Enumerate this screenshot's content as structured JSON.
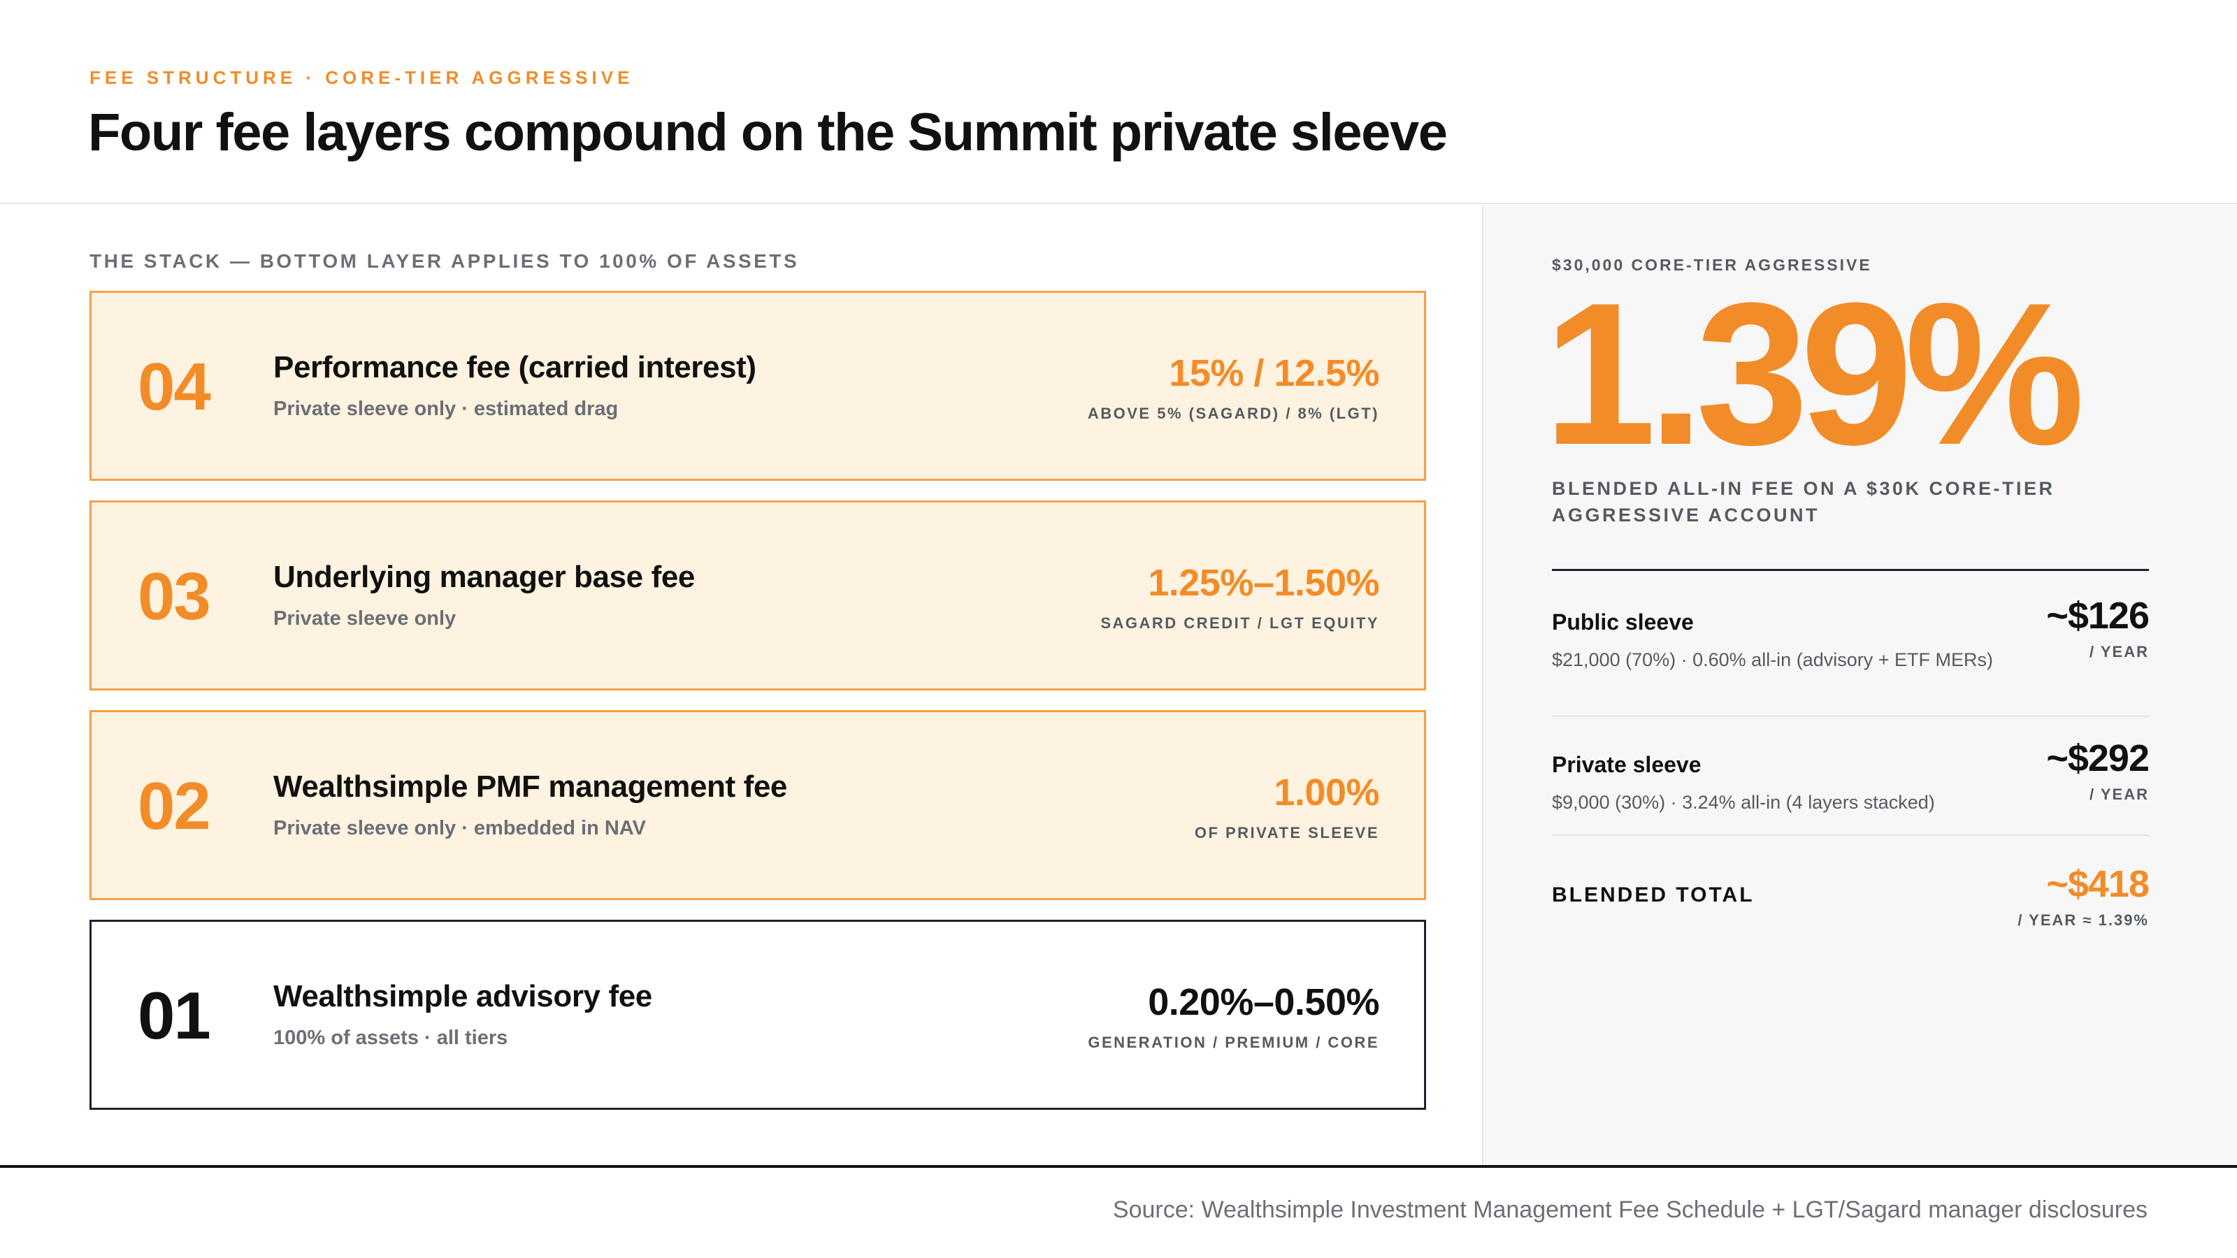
{
  "header": {
    "eyebrow": "FEE STRUCTURE · CORE-TIER AGGRESSIVE",
    "title": "Four fee layers compound on the Summit private sleeve"
  },
  "stack": {
    "label": "THE STACK — BOTTOM LAYER APPLIES TO 100% OF ASSETS",
    "layers": [
      {
        "number": "04",
        "name": "Performance fee (carried interest)",
        "sub": "Private sleeve only · estimated drag",
        "rate": "15% / 12.5%",
        "rate_note": "ABOVE 5% (SAGARD) / 8% (LGT)"
      },
      {
        "number": "03",
        "name": "Underlying manager base fee",
        "sub": "Private sleeve only",
        "rate": "1.25%–1.50%",
        "rate_note": "SAGARD CREDIT / LGT EQUITY"
      },
      {
        "number": "02",
        "name": "Wealthsimple PMF management fee",
        "sub": "Private sleeve only · embedded in NAV",
        "rate": "1.00%",
        "rate_note": "OF PRIVATE SLEEVE"
      },
      {
        "number": "01",
        "name": "Wealthsimple advisory fee",
        "sub": "100% of assets · all tiers",
        "rate": "0.20%–0.50%",
        "rate_note": "GENERATION / PREMIUM / CORE"
      }
    ]
  },
  "summary": {
    "eyebrow": "$30,000 CORE-TIER AGGRESSIVE",
    "big_value": "1.39%",
    "caption": "BLENDED ALL-IN FEE ON A $30K CORE-TIER AGGRESSIVE ACCOUNT",
    "rows": [
      {
        "name": "Public sleeve",
        "desc": "$21,000 (70%) · 0.60% all-in (advisory + ETF MERs)",
        "value": "~$126",
        "per": "/ YEAR"
      },
      {
        "name": "Private sleeve",
        "desc": "$9,000 (30%) · 3.24% all-in (4 layers stacked)",
        "value": "~$292",
        "per": "/ YEAR"
      }
    ],
    "total": {
      "name": "BLENDED TOTAL",
      "value": "~$418",
      "per": "/ YEAR ≈ 1.39%"
    }
  },
  "footer": {
    "source": "Source: Wealthsimple Investment Management Fee Schedule + LGT/Sagard manager disclosures"
  },
  "colors": {
    "accent": "#f28c28",
    "layer_fill": "#fef2e0",
    "layer_border": "#f2a24a",
    "base_border": "#1d2233",
    "muted_text": "#6b6f76"
  }
}
